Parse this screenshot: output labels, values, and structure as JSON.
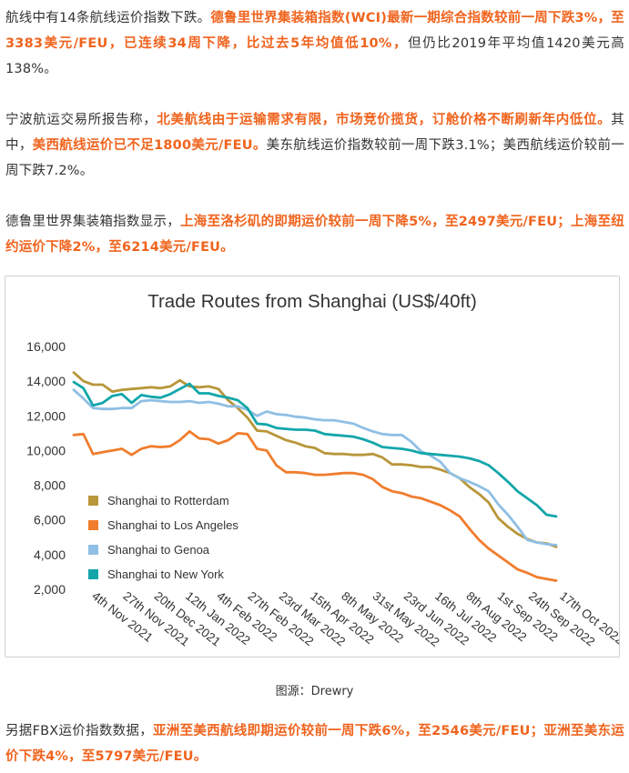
{
  "paragraphs": [
    {
      "id": "p1",
      "segments": [
        {
          "text": "航线中有14条航线运价指数下跌。",
          "hl": false
        },
        {
          "text": "德鲁里世界集装箱指数(WCI)最新一期综合指数较前一周下跌3%，至3383美元/FEU，已连续34周下降，比过去5年均值低10%，",
          "hl": true
        },
        {
          "text": "但仍比2019年平均值1420美元高138%。",
          "hl": false
        }
      ]
    },
    {
      "id": "p2",
      "segments": [
        {
          "text": "宁波航运交易所报告称，",
          "hl": false
        },
        {
          "text": "北美航线由于运输需求有限，市场竞价揽货，订舱价格不断刷新年内低位。",
          "hl": true
        },
        {
          "text": "其中，",
          "hl": false
        },
        {
          "text": "美西航线运价已不足1800美元/FEU。",
          "hl": true
        },
        {
          "text": "美东航线运价指数较前一周下跌3.1%；美西航线运价较前一周下跌7.2%。",
          "hl": false
        }
      ]
    },
    {
      "id": "p3",
      "segments": [
        {
          "text": "德鲁里世界集装箱指数显示，",
          "hl": false
        },
        {
          "text": "上海至洛杉矶的即期运价较前一周下降5%，至2497美元/FEU；上海至纽约运价下降2%，至6214美元/FEU。",
          "hl": true
        }
      ]
    },
    {
      "id": "p4",
      "segments": [
        {
          "text": "另据FBX运价指数数据，",
          "hl": false
        },
        {
          "text": "亚洲至美西航线即期运价较前一周下跌6%，至2546美元/FEU；亚洲至美东运价下跌4%，至5797美元/FEU。",
          "hl": true
        }
      ]
    }
  ],
  "caption": "图源：Drewry",
  "colors": {
    "highlight": "#f0641e",
    "rotterdam": "#b8963a",
    "los_angeles": "#f07d2e",
    "genoa": "#8fbfe4",
    "new_york": "#13a6aa"
  },
  "chart_data": {
    "type": "line",
    "title": "Trade Routes from Shanghai (US$/40ft)",
    "xlabel": "",
    "ylabel": "",
    "ylim": [
      2000,
      16000
    ],
    "yticks": [
      2000,
      4000,
      6000,
      8000,
      10000,
      12000,
      14000,
      16000
    ],
    "ytick_labels": [
      "2,000",
      "4,000",
      "6,000",
      "8,000",
      "10,000",
      "12,000",
      "14,000",
      "16,000"
    ],
    "x": [
      "4th Nov 2021",
      "11th Nov 2021",
      "18th Nov 2021",
      "25th Nov 2021",
      "2nd Dec 2021",
      "9th Dec 2021",
      "16th Dec 2021",
      "23rd Dec 2021",
      "30th Dec 2021",
      "6th Jan 2022",
      "13th Jan 2022",
      "20th Jan 2022",
      "27th Jan 2022",
      "3rd Feb 2022",
      "10th Feb 2022",
      "17th Feb 2022",
      "24th Feb 2022",
      "3rd Mar 2022",
      "10th Mar 2022",
      "17th Mar 2022",
      "24th Mar 2022",
      "31st Mar 2022",
      "7th Apr 2022",
      "14th Apr 2022",
      "21st Apr 2022",
      "28th Apr 2022",
      "5th May 2022",
      "12th May 2022",
      "19th May 2022",
      "26th May 2022",
      "2nd Jun 2022",
      "9th Jun 2022",
      "16th Jun 2022",
      "23rd Jun 2022",
      "30th Jun 2022",
      "7th Jul 2022",
      "14th Jul 2022",
      "21st Jul 2022",
      "28th Jul 2022",
      "4th Aug 2022",
      "11th Aug 2022",
      "18th Aug 2022",
      "25th Aug 2022",
      "1st Sep 2022",
      "8th Sep 2022",
      "15th Sep 2022",
      "22nd Sep 2022",
      "29th Sep 2022",
      "6th Oct 2022",
      "13th Oct 2022",
      "20th Oct 2022"
    ],
    "xtick_labels": [
      "4th Nov 2021",
      "27th Nov 2021",
      "20th Dec 2021",
      "12th Jan 2022",
      "4th Feb 2022",
      "27th Feb 2022",
      "23rd Mar 2022",
      "15th Apr 2022",
      "8th May 2022",
      "31st May 2022",
      "23rd Jun 2022",
      "16th Jul 2022",
      "8th Aug 2022",
      "1st Sep 2022",
      "24th Sep 2022",
      "17th Oct 2022"
    ],
    "legend_position": "bottom-left",
    "grid": false,
    "series": [
      {
        "name": "Shanghai to Rotterdam",
        "color_key": "rotterdam",
        "values": [
          14500,
          14000,
          13800,
          13800,
          13400,
          13500,
          13550,
          13600,
          13650,
          13600,
          13700,
          14050,
          13700,
          13650,
          13700,
          13550,
          12900,
          12450,
          11900,
          11150,
          11100,
          10850,
          10600,
          10450,
          10250,
          10150,
          9850,
          9800,
          9800,
          9750,
          9750,
          9800,
          9600,
          9200,
          9200,
          9150,
          9050,
          9050,
          8900,
          8700,
          8400,
          7900,
          7500,
          7000,
          6100,
          5600,
          5200,
          4900,
          4700,
          4650,
          4450
        ]
      },
      {
        "name": "Shanghai to Los Angeles",
        "color_key": "los_angeles",
        "values": [
          10900,
          10950,
          9800,
          9900,
          10000,
          10100,
          9750,
          10100,
          10250,
          10200,
          10250,
          10600,
          11100,
          10700,
          10650,
          10400,
          10600,
          11000,
          10950,
          10100,
          10000,
          9150,
          8750,
          8750,
          8700,
          8600,
          8600,
          8650,
          8700,
          8700,
          8600,
          8350,
          7900,
          7650,
          7550,
          7350,
          7250,
          7050,
          6850,
          6550,
          6200,
          5500,
          4850,
          4350,
          3950,
          3550,
          3150,
          2950,
          2700,
          2600,
          2500
        ]
      },
      {
        "name": "Shanghai to Genoa",
        "color_key": "genoa",
        "values": [
          13500,
          13000,
          12450,
          12400,
          12400,
          12450,
          12450,
          12850,
          12900,
          12850,
          12800,
          12800,
          12850,
          12750,
          12800,
          12700,
          12550,
          12550,
          12350,
          12000,
          12250,
          12100,
          12050,
          11950,
          11900,
          11800,
          11750,
          11750,
          11650,
          11550,
          11300,
          11100,
          10950,
          10900,
          10900,
          10500,
          9950,
          9700,
          9350,
          8700,
          8400,
          8200,
          7950,
          7650,
          6900,
          6300,
          5600,
          4850,
          4700,
          4600,
          4550
        ]
      },
      {
        "name": "Shanghai to New York",
        "color_key": "new_york",
        "values": [
          13950,
          13600,
          12600,
          12750,
          13150,
          13250,
          12750,
          13200,
          13100,
          13050,
          13250,
          13550,
          13850,
          13300,
          13300,
          13150,
          13050,
          12900,
          12450,
          11550,
          11500,
          11300,
          11250,
          11200,
          11200,
          11150,
          10950,
          10900,
          10850,
          10800,
          10650,
          10450,
          10200,
          10150,
          10100,
          10000,
          9850,
          9800,
          9750,
          9700,
          9650,
          9550,
          9400,
          9150,
          8700,
          8200,
          7650,
          7250,
          6850,
          6300,
          6200
        ]
      }
    ]
  }
}
